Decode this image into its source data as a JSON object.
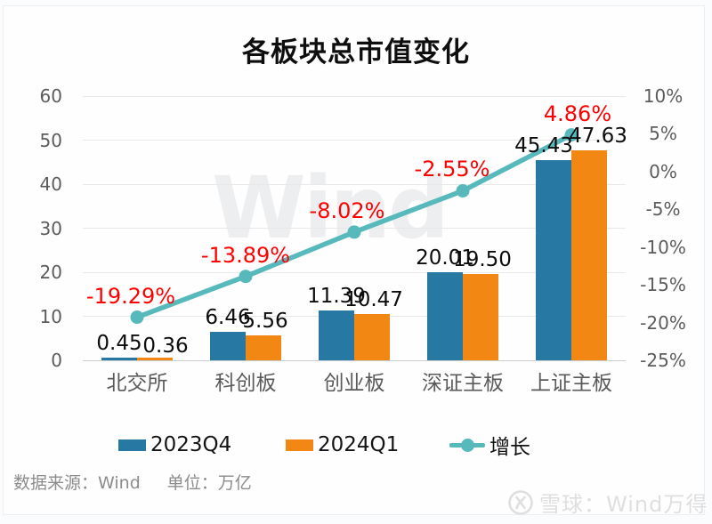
{
  "title": "各板块总市值变化",
  "watermark_center": "Wind",
  "footer": {
    "source": "数据来源：Wind",
    "unit": "单位：万亿"
  },
  "brand": {
    "text": "雪球：Wind万得",
    "logo": "xueqiu-snowball-icon"
  },
  "chart_data": {
    "type": "bar",
    "title": "各板块总市值变化",
    "categories": [
      "北交所",
      "科创板",
      "创业板",
      "深证主板",
      "上证主板"
    ],
    "series": [
      {
        "name": "2023Q4",
        "type": "bar",
        "color": "#2878a4",
        "values": [
          0.45,
          6.46,
          11.39,
          20.01,
          45.43
        ],
        "labels": [
          "0.45",
          "6.46",
          "11.39",
          "20.01",
          "45.43"
        ]
      },
      {
        "name": "2024Q1",
        "type": "bar",
        "color": "#f28714",
        "values": [
          0.36,
          5.56,
          10.47,
          19.5,
          47.63
        ],
        "labels": [
          "0.36",
          "5.56",
          "10.47",
          "19.50",
          "47.63"
        ]
      },
      {
        "name": "增长",
        "type": "line",
        "axis": "right",
        "color": "#57b9bb",
        "values": [
          -19.29,
          -13.89,
          -8.02,
          -2.55,
          4.86
        ],
        "labels": [
          "-19.29%",
          "-13.89%",
          "-8.02%",
          "-2.55%",
          "4.86%"
        ],
        "label_color": "#ff0000"
      }
    ],
    "left_axis": {
      "min": 0,
      "max": 60,
      "ticks": [
        0,
        10,
        20,
        30,
        40,
        50,
        60
      ]
    },
    "right_axis": {
      "min": -25,
      "max": 10,
      "step": 5,
      "tick_labels": [
        "-25%",
        "-20%",
        "-15%",
        "-10%",
        "-5%",
        "0%",
        "5%",
        "10%"
      ]
    },
    "grid": true,
    "legend_position": "bottom",
    "unit": "万亿"
  }
}
